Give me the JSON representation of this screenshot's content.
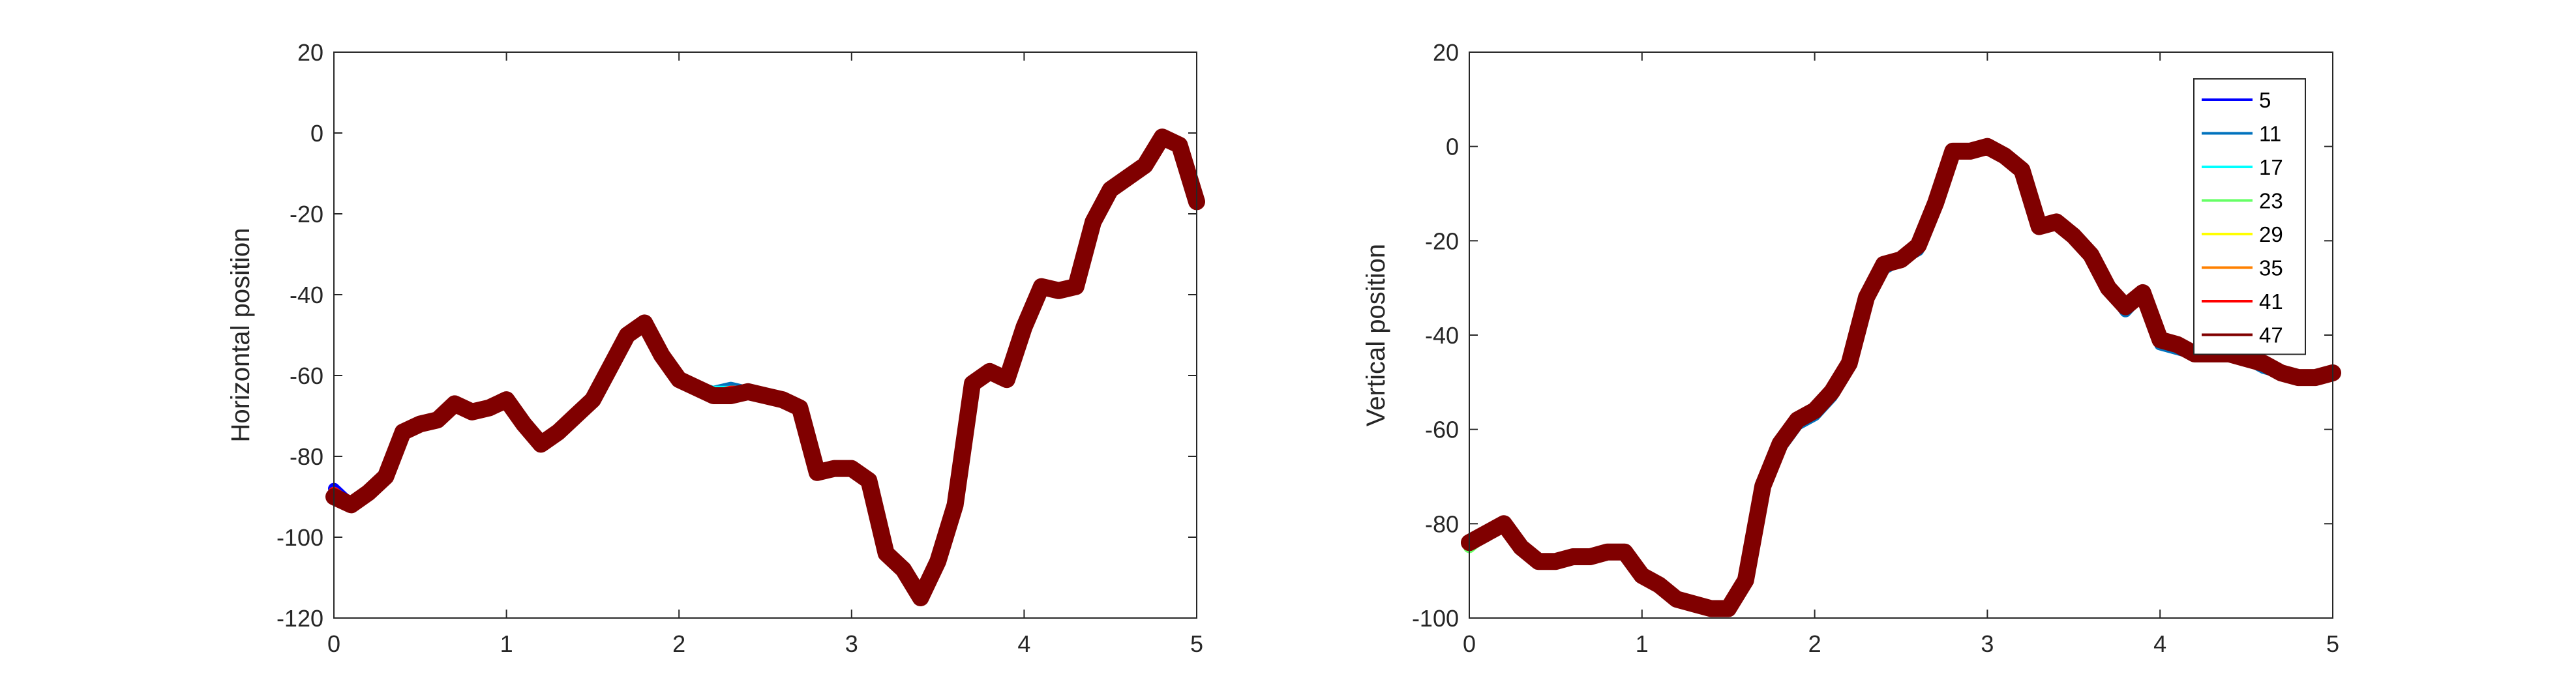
{
  "chart_data": [
    {
      "type": "line",
      "xlabel": "",
      "ylabel": "Horizontal position",
      "xlim": [
        0,
        5
      ],
      "ylim": [
        -120,
        20
      ],
      "xticks": [
        "0",
        "1",
        "2",
        "3",
        "4",
        "5"
      ],
      "yticks": [
        "20",
        "0",
        "-20",
        "-40",
        "-60",
        "-80",
        "-100",
        "-120"
      ],
      "grid": false,
      "x": [
        0,
        0.1,
        0.2,
        0.3,
        0.4,
        0.5,
        0.6,
        0.7,
        0.8,
        0.9,
        1.0,
        1.1,
        1.2,
        1.3,
        1.4,
        1.5,
        1.6,
        1.7,
        1.8,
        1.9,
        2.0,
        2.1,
        2.2,
        2.3,
        2.4,
        2.5,
        2.6,
        2.7,
        2.8,
        2.9,
        3.0,
        3.1,
        3.2,
        3.3,
        3.4,
        3.5,
        3.6,
        3.7,
        3.8,
        3.9,
        4.0,
        4.1,
        4.2,
        4.3,
        4.4,
        4.5,
        4.6,
        4.7,
        4.8,
        4.9,
        5.0
      ],
      "series": [
        {
          "name": "5",
          "color": "#0000FF",
          "values": [
            -88,
            -92,
            -89,
            -85,
            -74,
            -72,
            -71,
            -67,
            -69,
            -68,
            -66,
            -72,
            -77,
            -74,
            -70,
            -66,
            -58,
            -50,
            -47,
            -55,
            -61,
            -63,
            -65,
            -64,
            -64,
            -65,
            -66,
            -68,
            -84,
            -83,
            -83,
            -86,
            -104,
            -108,
            -115,
            -106,
            -92,
            -62,
            -59,
            -61,
            -48,
            -38,
            -39,
            -38,
            -22,
            -14,
            -11,
            -8,
            -1,
            -3,
            -17
          ]
        },
        {
          "name": "11",
          "color": "#0072BD",
          "values": [
            -89,
            -92,
            -89,
            -85,
            -74,
            -72,
            -71,
            -67,
            -69,
            -68,
            -66,
            -72,
            -77,
            -74,
            -70,
            -66,
            -58,
            -50,
            -47,
            -55,
            -61,
            -63,
            -64,
            -63,
            -64,
            -65,
            -66,
            -68,
            -84,
            -83,
            -83,
            -86,
            -104,
            -108,
            -115,
            -106,
            -92,
            -62,
            -59,
            -61,
            -48,
            -38,
            -39,
            -38,
            -22,
            -14,
            -11,
            -8,
            -1,
            -3,
            -17
          ]
        },
        {
          "name": "17",
          "color": "#00FFFF",
          "values": [
            -89,
            -92,
            -89,
            -85,
            -74,
            -72,
            -71,
            -67,
            -69,
            -68,
            -66,
            -72,
            -77,
            -74,
            -70,
            -66,
            -58,
            -50,
            -47,
            -55,
            -61,
            -63,
            -64,
            -64,
            -64,
            -65,
            -66,
            -68,
            -84,
            -83,
            -83,
            -86,
            -104,
            -108,
            -115,
            -106,
            -92,
            -62,
            -59,
            -61,
            -48,
            -38,
            -39,
            -38,
            -22,
            -14,
            -11,
            -8,
            -1,
            -3,
            -17
          ]
        },
        {
          "name": "23",
          "color": "#66FF66",
          "values": [
            -89,
            -92,
            -89,
            -85,
            -74,
            -72,
            -71,
            -67,
            -69,
            -68,
            -66,
            -72,
            -77,
            -74,
            -70,
            -66,
            -58,
            -50,
            -47,
            -55,
            -61,
            -63,
            -65,
            -64,
            -64,
            -65,
            -66,
            -68,
            -84,
            -83,
            -83,
            -86,
            -104,
            -108,
            -115,
            -106,
            -92,
            -62,
            -59,
            -61,
            -48,
            -38,
            -39,
            -38,
            -22,
            -14,
            -11,
            -8,
            -1,
            -3,
            -17
          ]
        },
        {
          "name": "29",
          "color": "#FFFF00",
          "values": [
            -89,
            -92,
            -89,
            -85,
            -74,
            -72,
            -71,
            -67,
            -69,
            -68,
            -66,
            -72,
            -77,
            -74,
            -70,
            -66,
            -58,
            -50,
            -47,
            -55,
            -61,
            -63,
            -65,
            -64,
            -64,
            -65,
            -66,
            -68,
            -84,
            -83,
            -83,
            -86,
            -104,
            -108,
            -115,
            -106,
            -92,
            -62,
            -59,
            -61,
            -48,
            -38,
            -39,
            -38,
            -22,
            -14,
            -11,
            -8,
            -1,
            -3,
            -17
          ]
        },
        {
          "name": "35",
          "color": "#FF8000",
          "values": [
            -89,
            -92,
            -89,
            -85,
            -74,
            -72,
            -71,
            -67,
            -69,
            -68,
            -66,
            -72,
            -77,
            -74,
            -70,
            -66,
            -58,
            -50,
            -47,
            -55,
            -61,
            -63,
            -65,
            -64,
            -64,
            -65,
            -66,
            -68,
            -84,
            -83,
            -83,
            -86,
            -104,
            -108,
            -115,
            -106,
            -92,
            -62,
            -59,
            -61,
            -48,
            -38,
            -39,
            -38,
            -22,
            -14,
            -11,
            -8,
            -1,
            -3,
            -17
          ]
        },
        {
          "name": "41",
          "color": "#FF0000",
          "values": [
            -89,
            -92,
            -89,
            -85,
            -74,
            -72,
            -71,
            -67,
            -69,
            -68,
            -66,
            -72,
            -77,
            -74,
            -70,
            -66,
            -58,
            -50,
            -47,
            -55,
            -61,
            -63,
            -65,
            -64,
            -64,
            -65,
            -66,
            -68,
            -84,
            -83,
            -83,
            -86,
            -104,
            -108,
            -115,
            -106,
            -92,
            -62,
            -59,
            -61,
            -48,
            -38,
            -39,
            -38,
            -22,
            -14,
            -11,
            -8,
            -1,
            -3,
            -17
          ]
        },
        {
          "name": "47",
          "color": "#800000",
          "values": [
            -90,
            -92,
            -89,
            -85,
            -74,
            -72,
            -71,
            -67,
            -69,
            -68,
            -66,
            -72,
            -77,
            -74,
            -70,
            -66,
            -58,
            -50,
            -47,
            -55,
            -61,
            -63,
            -65,
            -65,
            -64,
            -65,
            -66,
            -68,
            -84,
            -83,
            -83,
            -86,
            -104,
            -108,
            -115,
            -106,
            -92,
            -62,
            -59,
            -61,
            -48,
            -38,
            -39,
            -38,
            -22,
            -14,
            -11,
            -8,
            -1,
            -3,
            -17
          ]
        }
      ]
    },
    {
      "type": "line",
      "xlabel": "",
      "ylabel": "Vertical position",
      "xlim": [
        0,
        5
      ],
      "ylim": [
        -100,
        20
      ],
      "xticks": [
        "0",
        "1",
        "2",
        "3",
        "4",
        "5"
      ],
      "yticks": [
        "20",
        "0",
        "-20",
        "-40",
        "-60",
        "-80",
        "-100"
      ],
      "grid": false,
      "legend": "top-right",
      "x": [
        0,
        0.1,
        0.2,
        0.3,
        0.4,
        0.5,
        0.6,
        0.7,
        0.8,
        0.9,
        1.0,
        1.1,
        1.2,
        1.3,
        1.4,
        1.5,
        1.6,
        1.7,
        1.8,
        1.9,
        2.0,
        2.1,
        2.2,
        2.3,
        2.4,
        2.5,
        2.6,
        2.7,
        2.8,
        2.9,
        3.0,
        3.1,
        3.2,
        3.3,
        3.4,
        3.5,
        3.6,
        3.7,
        3.8,
        3.9,
        4.0,
        4.1,
        4.2,
        4.3,
        4.4,
        4.5,
        4.6,
        4.7,
        4.8,
        4.9,
        5.0
      ],
      "series": [
        {
          "name": "5",
          "color": "#0000FF",
          "values": [
            -84,
            -82,
            -80,
            -85,
            -88,
            -88,
            -87,
            -87,
            -86,
            -86,
            -91,
            -93,
            -96,
            -97,
            -98,
            -98,
            -92,
            -72,
            -63,
            -58,
            -56,
            -52,
            -46,
            -32,
            -25,
            -24,
            -21,
            -12,
            -1,
            -1,
            0,
            -2,
            -5,
            -17,
            -16,
            -19,
            -23,
            -30,
            -34,
            -31,
            -41,
            -42,
            -44,
            -44,
            -44,
            -45,
            -46,
            -48,
            -49,
            -49,
            -48
          ]
        },
        {
          "name": "11",
          "color": "#0072BD",
          "values": [
            -84,
            -82,
            -80,
            -85,
            -88,
            -88,
            -87,
            -87,
            -86,
            -86,
            -91,
            -93,
            -96,
            -97,
            -98,
            -98,
            -92,
            -72,
            -64,
            -59,
            -57,
            -53,
            -47,
            -33,
            -26,
            -24,
            -22,
            -12,
            -1,
            -1,
            0,
            -2,
            -5,
            -17,
            -16,
            -19,
            -23,
            -30,
            -35,
            -31,
            -42,
            -43,
            -44,
            -44,
            -44,
            -45,
            -47,
            -48,
            -49,
            -49,
            -48
          ]
        },
        {
          "name": "17",
          "color": "#00FFFF",
          "values": [
            -84,
            -82,
            -80,
            -85,
            -88,
            -88,
            -87,
            -87,
            -86,
            -86,
            -91,
            -93,
            -96,
            -97,
            -98,
            -98,
            -92,
            -72,
            -63,
            -58,
            -56,
            -52,
            -46,
            -32,
            -25,
            -24,
            -21,
            -12,
            -1,
            -1,
            0,
            -2,
            -5,
            -17,
            -16,
            -19,
            -23,
            -30,
            -34,
            -31,
            -41,
            -42,
            -44,
            -44,
            -44,
            -45,
            -46,
            -48,
            -49,
            -49,
            -48
          ]
        },
        {
          "name": "23",
          "color": "#66FF66",
          "values": [
            -85,
            -82,
            -80,
            -85,
            -88,
            -88,
            -87,
            -87,
            -86,
            -86,
            -91,
            -93,
            -96,
            -97,
            -98,
            -98,
            -92,
            -72,
            -63,
            -58,
            -56,
            -52,
            -46,
            -32,
            -25,
            -24,
            -21,
            -12,
            -1,
            -1,
            0,
            -2,
            -5,
            -17,
            -16,
            -19,
            -23,
            -30,
            -34,
            -31,
            -41,
            -42,
            -44,
            -44,
            -44,
            -45,
            -46,
            -48,
            -49,
            -49,
            -48
          ]
        },
        {
          "name": "29",
          "color": "#FFFF00",
          "values": [
            -84,
            -82,
            -80,
            -85,
            -88,
            -88,
            -87,
            -87,
            -86,
            -86,
            -91,
            -93,
            -96,
            -97,
            -98,
            -98,
            -92,
            -72,
            -63,
            -58,
            -56,
            -52,
            -46,
            -32,
            -25,
            -24,
            -21,
            -12,
            -1,
            -1,
            0,
            -2,
            -5,
            -17,
            -16,
            -19,
            -23,
            -30,
            -34,
            -31,
            -41,
            -42,
            -44,
            -44,
            -44,
            -45,
            -46,
            -48,
            -49,
            -49,
            -48
          ]
        },
        {
          "name": "35",
          "color": "#FF8000",
          "values": [
            -84,
            -82,
            -80,
            -85,
            -88,
            -88,
            -87,
            -87,
            -86,
            -86,
            -91,
            -93,
            -96,
            -97,
            -98,
            -98,
            -92,
            -72,
            -63,
            -58,
            -56,
            -52,
            -46,
            -32,
            -25,
            -24,
            -21,
            -12,
            -1,
            -1,
            0,
            -2,
            -5,
            -17,
            -16,
            -19,
            -23,
            -30,
            -34,
            -31,
            -41,
            -42,
            -44,
            -44,
            -44,
            -45,
            -46,
            -48,
            -49,
            -49,
            -48
          ]
        },
        {
          "name": "41",
          "color": "#FF0000",
          "values": [
            -84,
            -82,
            -80,
            -85,
            -88,
            -88,
            -87,
            -87,
            -86,
            -86,
            -91,
            -93,
            -96,
            -97,
            -98,
            -98,
            -92,
            -72,
            -63,
            -58,
            -56,
            -52,
            -46,
            -32,
            -25,
            -24,
            -21,
            -12,
            -1,
            -1,
            0,
            -2,
            -5,
            -17,
            -16,
            -19,
            -23,
            -30,
            -34,
            -31,
            -41,
            -42,
            -44,
            -44,
            -44,
            -45,
            -46,
            -48,
            -49,
            -49,
            -48
          ]
        },
        {
          "name": "47",
          "color": "#800000",
          "values": [
            -84,
            -82,
            -80,
            -85,
            -88,
            -88,
            -87,
            -87,
            -86,
            -86,
            -91,
            -93,
            -96,
            -97,
            -98,
            -98,
            -92,
            -72,
            -63,
            -58,
            -56,
            -52,
            -46,
            -32,
            -25,
            -24,
            -21,
            -12,
            -1,
            -1,
            0,
            -2,
            -5,
            -17,
            -16,
            -19,
            -23,
            -30,
            -34,
            -31,
            -41,
            -42,
            -44,
            -44,
            -44,
            -45,
            -46,
            -48,
            -49,
            -49,
            -48
          ]
        }
      ]
    }
  ]
}
